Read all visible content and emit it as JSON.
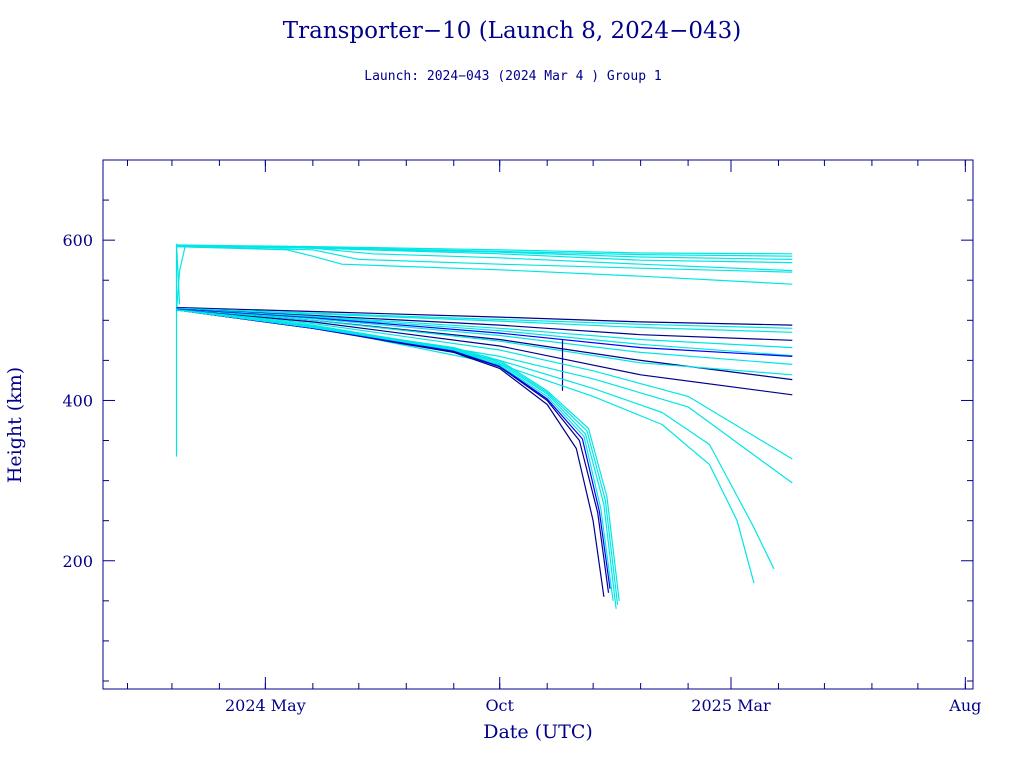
{
  "colors": {
    "axis": "#00008b",
    "text": "#00008b",
    "cyan": "#00e6e6",
    "navy": "#00008b",
    "blue": "#0000ff",
    "background": "#ffffff"
  },
  "chart_data": {
    "type": "line",
    "title": "Transporter−10 (Launch 8, 2024−043)",
    "subtitle": "Launch: 2024−043  (2024 Mar  4 )  Group 1",
    "xlabel": "Date (UTC)",
    "ylabel": "Height (km)",
    "xlim": [
      "2024-01-16",
      "2025-08-06"
    ],
    "ylim": [
      40,
      700
    ],
    "x_ticks": [
      {
        "date": "2024-05-01",
        "label": "2024 May"
      },
      {
        "date": "2024-10-01",
        "label": "Oct"
      },
      {
        "date": "2025-03-01",
        "label": "2025 Mar"
      },
      {
        "date": "2025-08-01",
        "label": "Aug"
      }
    ],
    "y_ticks": [
      {
        "value": 200,
        "label": "200"
      },
      {
        "value": 400,
        "label": "400"
      },
      {
        "value": 600,
        "label": "600"
      }
    ],
    "grid": false,
    "legend": false,
    "series": [
      {
        "color": "cyan",
        "x": [
          "2024-03-04",
          "2024-03-04",
          "2024-03-06"
        ],
        "y": [
          330,
          595,
          520
        ]
      },
      {
        "color": "cyan",
        "x": [
          "2024-03-04",
          "2024-03-06",
          "2024-03-10"
        ],
        "y": [
          512,
          562,
          595
        ]
      },
      {
        "color": "cyan",
        "x": [
          "2024-03-04",
          "2024-06-01",
          "2024-10-01",
          "2025-01-01",
          "2025-04-10"
        ],
        "y": [
          594,
          592,
          588,
          584,
          583
        ]
      },
      {
        "color": "cyan",
        "x": [
          "2024-03-04",
          "2024-06-01",
          "2024-10-01",
          "2025-01-01",
          "2025-04-10"
        ],
        "y": [
          594,
          591,
          586,
          582,
          580
        ]
      },
      {
        "color": "cyan",
        "x": [
          "2024-03-04",
          "2024-06-01",
          "2024-10-01",
          "2025-01-01",
          "2025-04-10"
        ],
        "y": [
          593,
          590,
          585,
          579,
          576
        ]
      },
      {
        "color": "cyan",
        "x": [
          "2024-03-04",
          "2024-06-01",
          "2024-10-01",
          "2025-01-01",
          "2025-04-10"
        ],
        "y": [
          593,
          590,
          583,
          575,
          572
        ]
      },
      {
        "color": "cyan",
        "x": [
          "2024-03-04",
          "2024-06-01",
          "2024-07-10",
          "2024-10-01",
          "2025-01-01",
          "2025-04-10"
        ],
        "y": [
          593,
          590,
          583,
          578,
          570,
          562
        ]
      },
      {
        "color": "cyan",
        "x": [
          "2024-03-04",
          "2024-06-01",
          "2024-07-01",
          "2024-10-01",
          "2025-01-01",
          "2025-04-10"
        ],
        "y": [
          592,
          588,
          576,
          570,
          565,
          560
        ]
      },
      {
        "color": "cyan",
        "x": [
          "2024-03-04",
          "2024-05-15",
          "2024-06-01",
          "2024-06-20",
          "2024-10-01",
          "2025-01-01",
          "2025-04-10"
        ],
        "y": [
          592,
          588,
          580,
          570,
          563,
          555,
          545
        ]
      },
      {
        "color": "navy",
        "x": [
          "2024-03-04",
          "2024-06-01",
          "2024-10-01",
          "2025-01-01",
          "2025-04-10"
        ],
        "y": [
          516,
          511,
          504,
          498,
          494
        ]
      },
      {
        "color": "cyan",
        "x": [
          "2024-03-04",
          "2024-06-01",
          "2024-10-01",
          "2025-01-01",
          "2025-04-10"
        ],
        "y": [
          515,
          509,
          501,
          495,
          490
        ]
      },
      {
        "color": "cyan",
        "x": [
          "2024-03-04",
          "2024-06-01",
          "2024-10-01",
          "2025-01-01",
          "2025-04-10"
        ],
        "y": [
          515,
          508,
          499,
          491,
          485
        ]
      },
      {
        "color": "navy",
        "x": [
          "2024-03-04",
          "2024-06-01",
          "2024-10-01",
          "2025-01-01",
          "2025-04-10"
        ],
        "y": [
          514,
          506,
          494,
          482,
          475
        ]
      },
      {
        "color": "cyan",
        "x": [
          "2024-03-04",
          "2024-06-01",
          "2024-10-01",
          "2025-01-01",
          "2025-04-10"
        ],
        "y": [
          514,
          505,
          490,
          476,
          466
        ]
      },
      {
        "color": "cyan",
        "x": [
          "2024-03-04",
          "2024-06-01",
          "2024-10-01",
          "2025-01-01",
          "2025-04-10"
        ],
        "y": [
          514,
          504,
          487,
          470,
          456
        ]
      },
      {
        "color": "blue",
        "x": [
          "2024-03-04",
          "2024-06-01",
          "2024-10-01",
          "2025-01-01",
          "2025-04-10"
        ],
        "y": [
          514,
          503,
          484,
          466,
          455
        ]
      },
      {
        "color": "cyan",
        "x": [
          "2024-03-04",
          "2024-06-01",
          "2024-10-01",
          "2025-01-01",
          "2025-04-10"
        ],
        "y": [
          513,
          502,
          481,
          460,
          445
        ]
      },
      {
        "color": "navy",
        "x": [
          "2024-03-04",
          "2024-06-01",
          "2024-10-01",
          "2025-01-01",
          "2025-04-10"
        ],
        "y": [
          513,
          500,
          476,
          450,
          426
        ]
      },
      {
        "color": "cyan",
        "x": [
          "2024-03-04",
          "2024-06-01",
          "2024-10-01",
          "2025-01-01",
          "2025-04-10"
        ],
        "y": [
          513,
          500,
          474,
          447,
          432
        ]
      },
      {
        "color": "navy",
        "x": [
          "2024-03-04",
          "2024-06-01",
          "2024-10-01",
          "2025-01-01",
          "2025-04-10"
        ],
        "y": [
          513,
          498,
          468,
          432,
          407
        ]
      },
      {
        "color": "navy",
        "x": [
          "2024-11-11",
          "2024-11-11"
        ],
        "y": [
          475,
          412
        ]
      },
      {
        "color": "cyan",
        "x": [
          "2024-03-04",
          "2024-06-01",
          "2024-10-01",
          "2024-12-01",
          "2025-02-01",
          "2025-04-10"
        ],
        "y": [
          513,
          496,
          463,
          437,
          405,
          327
        ]
      },
      {
        "color": "cyan",
        "x": [
          "2024-03-04",
          "2024-06-01",
          "2024-10-01",
          "2024-12-01",
          "2025-02-01",
          "2025-04-10"
        ],
        "y": [
          513,
          494,
          455,
          427,
          392,
          297
        ]
      },
      {
        "color": "cyan",
        "x": [
          "2024-03-04",
          "2024-06-01",
          "2024-10-01",
          "2024-12-01",
          "2025-01-15",
          "2025-02-15",
          "2025-03-15",
          "2025-03-29"
        ],
        "y": [
          513,
          493,
          450,
          415,
          385,
          345,
          245,
          190
        ]
      },
      {
        "color": "cyan",
        "x": [
          "2024-03-04",
          "2024-06-01",
          "2024-10-01",
          "2024-12-01",
          "2025-01-15",
          "2025-02-15",
          "2025-03-05",
          "2025-03-16"
        ],
        "y": [
          513,
          492,
          445,
          405,
          370,
          320,
          250,
          172
        ]
      },
      {
        "color": "navy",
        "x": [
          "2024-03-04",
          "2024-06-01",
          "2024-09-01",
          "2024-10-01",
          "2024-11-01",
          "2024-11-20",
          "2024-12-01",
          "2024-12-08"
        ],
        "y": [
          513,
          490,
          460,
          440,
          395,
          340,
          250,
          155
        ]
      },
      {
        "color": "navy",
        "x": [
          "2024-03-04",
          "2024-06-01",
          "2024-09-01",
          "2024-10-01",
          "2024-11-01",
          "2024-11-22",
          "2024-12-04",
          "2024-12-11"
        ],
        "y": [
          513,
          490,
          461,
          442,
          400,
          350,
          260,
          160
        ]
      },
      {
        "color": "blue",
        "x": [
          "2024-03-04",
          "2024-06-01",
          "2024-09-01",
          "2024-10-01",
          "2024-11-01",
          "2024-11-24",
          "2024-12-05",
          "2024-12-12"
        ],
        "y": [
          513,
          490,
          462,
          443,
          402,
          352,
          262,
          165
        ]
      },
      {
        "color": "cyan",
        "x": [
          "2024-03-04",
          "2024-06-01",
          "2024-09-01",
          "2024-10-01",
          "2024-11-01",
          "2024-11-25",
          "2024-12-06",
          "2024-12-14"
        ],
        "y": [
          513,
          491,
          463,
          444,
          405,
          355,
          265,
          150
        ]
      },
      {
        "color": "cyan",
        "x": [
          "2024-03-04",
          "2024-06-01",
          "2024-09-01",
          "2024-10-01",
          "2024-11-01",
          "2024-11-26",
          "2024-12-08",
          "2024-12-16"
        ],
        "y": [
          513,
          491,
          464,
          446,
          408,
          358,
          270,
          140
        ]
      },
      {
        "color": "cyan",
        "x": [
          "2024-03-04",
          "2024-06-01",
          "2024-09-01",
          "2024-10-01",
          "2024-11-01",
          "2024-11-27",
          "2024-12-09",
          "2024-12-17"
        ],
        "y": [
          513,
          492,
          465,
          448,
          410,
          362,
          275,
          145
        ]
      },
      {
        "color": "cyan",
        "x": [
          "2024-03-04",
          "2024-06-01",
          "2024-09-01",
          "2024-10-01",
          "2024-11-01",
          "2024-11-28",
          "2024-12-10",
          "2024-12-18"
        ],
        "y": [
          513,
          492,
          466,
          450,
          412,
          365,
          280,
          150
        ]
      }
    ]
  }
}
